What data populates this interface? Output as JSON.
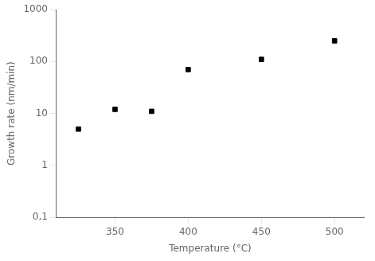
{
  "chart_data": {
    "type": "scatter",
    "x": [
      325,
      350,
      375,
      400,
      450,
      500
    ],
    "values": [
      5.0,
      12.0,
      11.0,
      70.0,
      110.0,
      250.0
    ],
    "xlabel": "Temperature (°C)",
    "ylabel": "Growth rate (nm/min)",
    "xlim": [
      310,
      520
    ],
    "ylim": [
      0.1,
      1000
    ],
    "xticks": [
      350,
      400,
      450,
      500
    ],
    "yticks": [
      {
        "value": 0.1,
        "label": "0,1"
      },
      1,
      10,
      100,
      1000
    ],
    "log": "y",
    "grid": false,
    "marker": "square",
    "color": "black"
  }
}
